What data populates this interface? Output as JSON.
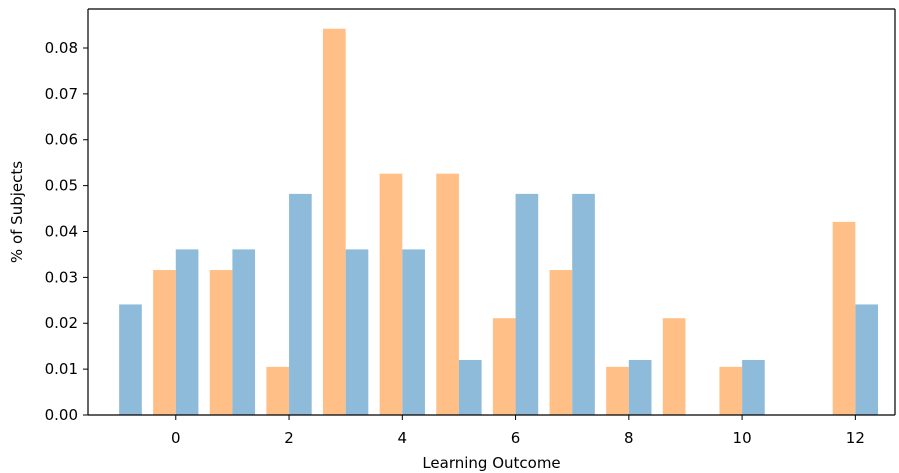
{
  "chart_data": {
    "type": "bar",
    "title": "",
    "xlabel": "Learning Outcome",
    "ylabel": "% of Subjects",
    "xlim": [
      -1.55,
      12.7
    ],
    "ylim": [
      0,
      0.0885
    ],
    "xticks": [
      0,
      2,
      4,
      6,
      8,
      10,
      12
    ],
    "yticks": [
      0.0,
      0.01,
      0.02,
      0.03,
      0.04,
      0.05,
      0.06,
      0.07,
      0.08
    ],
    "ytick_labels": [
      "0.00",
      "0.01",
      "0.02",
      "0.03",
      "0.04",
      "0.05",
      "0.06",
      "0.07",
      "0.08"
    ],
    "grid": false,
    "series": [
      {
        "color": "#ffbf86",
        "offset": -0.2,
        "width": 0.4,
        "x": [
          -1,
          0,
          1,
          2,
          3,
          4,
          5,
          6,
          7,
          8,
          9,
          10,
          11,
          12
        ],
        "values": [
          0,
          0.0316,
          0.0316,
          0.0105,
          0.0842,
          0.0526,
          0.0526,
          0.0211,
          0.0316,
          0.0105,
          0.0211,
          0.0105,
          0,
          0.0421
        ]
      },
      {
        "color": "#8fbbda",
        "offset": 0.2,
        "width": 0.4,
        "x": [
          -1,
          0,
          1,
          2,
          3,
          4,
          5,
          6,
          7,
          8,
          9,
          10,
          11,
          12
        ],
        "values": [
          0.0241,
          0.0361,
          0.0361,
          0.0482,
          0.0361,
          0.0361,
          0.012,
          0.0482,
          0.0482,
          0.012,
          0,
          0.012,
          0,
          0.0241
        ]
      }
    ]
  }
}
